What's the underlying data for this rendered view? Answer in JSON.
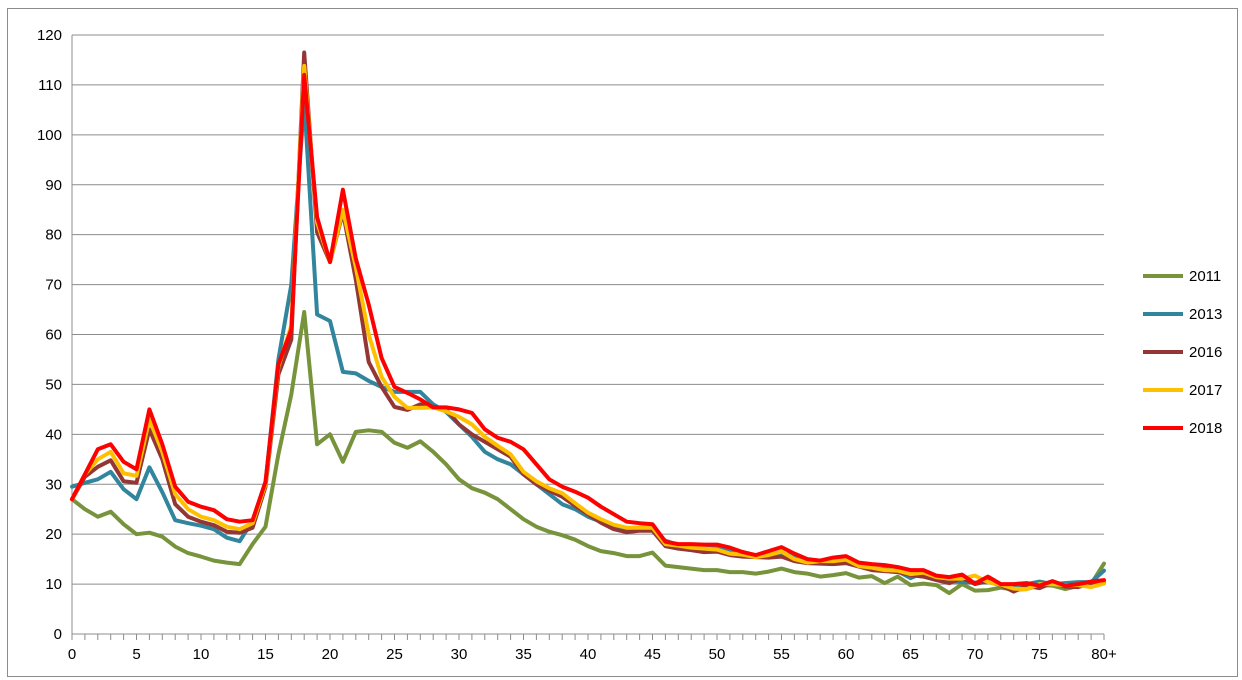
{
  "chart_data": {
    "type": "line",
    "title": "",
    "xlabel": "",
    "ylabel": "",
    "ylim": [
      0,
      120
    ],
    "y_ticks": [
      0,
      10,
      20,
      30,
      40,
      50,
      60,
      70,
      80,
      90,
      100,
      110,
      120
    ],
    "x_tick_labels": [
      "0",
      "5",
      "10",
      "15",
      "20",
      "25",
      "30",
      "35",
      "40",
      "45",
      "50",
      "55",
      "60",
      "65",
      "70",
      "75",
      "80+"
    ],
    "x": [
      "0",
      "1",
      "2",
      "3",
      "4",
      "5",
      "6",
      "7",
      "8",
      "9",
      "10",
      "11",
      "12",
      "13",
      "14",
      "15",
      "16",
      "17",
      "18",
      "19",
      "20",
      "21",
      "22",
      "23",
      "24",
      "25",
      "26",
      "27",
      "28",
      "29",
      "30",
      "31",
      "32",
      "33",
      "34",
      "35",
      "36",
      "37",
      "38",
      "39",
      "40",
      "41",
      "42",
      "43",
      "44",
      "45",
      "46",
      "47",
      "48",
      "49",
      "50",
      "51",
      "52",
      "53",
      "54",
      "55",
      "56",
      "57",
      "58",
      "59",
      "60",
      "61",
      "62",
      "63",
      "64",
      "65",
      "66",
      "67",
      "68",
      "69",
      "70",
      "71",
      "72",
      "73",
      "74",
      "75",
      "76",
      "77",
      "78",
      "79",
      "80+"
    ],
    "grid": "horizontal",
    "legend_position": "right",
    "series": [
      {
        "name": "2011",
        "color": "#77933c",
        "values": [
          27,
          25,
          23.5,
          24.5,
          22,
          20,
          20.3,
          19.5,
          17.5,
          16.2,
          15.5,
          14.7,
          14.3,
          14,
          18,
          21.5,
          36,
          48,
          64.5,
          38,
          40,
          34.5,
          40.5,
          40.8,
          40.5,
          38.3,
          37.3,
          38.6,
          36.5,
          34,
          31,
          29.2,
          28.3,
          27,
          25,
          23,
          21.5,
          20.5,
          19.8,
          18.9,
          17.6,
          16.6,
          16.2,
          15.6,
          15.6,
          16.3,
          13.7,
          13.4,
          13.1,
          12.8,
          12.8,
          12.4,
          12.4,
          12.1,
          12.5,
          13.1,
          12.4,
          12.1,
          11.5,
          11.8,
          12.2,
          11.3,
          11.6,
          10.2,
          11.5,
          9.8,
          10.1,
          9.8,
          8.2,
          10,
          8.7,
          8.8,
          9.3,
          8.9,
          9,
          9.8,
          9.7,
          9,
          9.6,
          10,
          14.1
        ]
      },
      {
        "name": "2013",
        "color": "#31859c",
        "values": [
          29.5,
          30.3,
          31,
          32.5,
          29,
          27,
          33.4,
          28.4,
          22.8,
          22.2,
          21.7,
          21,
          19.3,
          18.6,
          22.7,
          30.3,
          55,
          70,
          107,
          64,
          62.7,
          52.5,
          52.2,
          50.7,
          49.5,
          48.5,
          48.5,
          48.5,
          46,
          44.5,
          42,
          39.5,
          36.5,
          35,
          34,
          32,
          30,
          28,
          26,
          25,
          23.5,
          22.5,
          21.5,
          21,
          21,
          21,
          18.7,
          17.8,
          17.5,
          17.2,
          17.5,
          16.9,
          16.4,
          15.7,
          15.7,
          16.2,
          15.6,
          14.9,
          14.6,
          14.4,
          14.5,
          13.8,
          13.2,
          13,
          12.6,
          11.2,
          12.3,
          11.2,
          10.6,
          10.4,
          10.3,
          10.4,
          9.8,
          9.5,
          10,
          10.5,
          10,
          10.2,
          10.4,
          10.4,
          12.7
        ]
      },
      {
        "name": "2016",
        "color": "#943634",
        "values": [
          27,
          31.5,
          33.5,
          34.8,
          30.6,
          30.3,
          41,
          35,
          26,
          23.5,
          22.5,
          21.8,
          20.5,
          20.3,
          21.3,
          29.5,
          52,
          59,
          116.5,
          80.5,
          74.5,
          84.5,
          71,
          54.5,
          49.5,
          45.5,
          44.9,
          46,
          45.5,
          45,
          42,
          40,
          38.5,
          37,
          35.5,
          32,
          30,
          28.7,
          27.5,
          25.7,
          24,
          22.3,
          21,
          20.4,
          20.7,
          20.7,
          17.6,
          17.1,
          16.8,
          16.4,
          16.5,
          15.8,
          15.5,
          15.4,
          15.3,
          15.5,
          14.6,
          14.2,
          14.1,
          14,
          14.2,
          13.5,
          12.8,
          12.6,
          12.4,
          11.8,
          11.5,
          10.8,
          10.2,
          11.2,
          10,
          10.6,
          9.8,
          8.5,
          9.7,
          9.2,
          10.3,
          9.5,
          9.4,
          10.2,
          10.3
        ]
      },
      {
        "name": "2017",
        "color": "#ffc000",
        "values": [
          27,
          32,
          35,
          36.5,
          32.2,
          31.7,
          43,
          36.5,
          28,
          25,
          23.5,
          22.8,
          21.5,
          21,
          22.2,
          30,
          53.5,
          61.8,
          113.8,
          82.5,
          74.5,
          85,
          73.5,
          60,
          51.5,
          47.5,
          45.3,
          45.3,
          45.4,
          44.6,
          43.5,
          42,
          39.5,
          37.7,
          36,
          32.5,
          30.6,
          29.2,
          28.2,
          26.2,
          24.3,
          23,
          21.9,
          21.3,
          21.3,
          21.3,
          18,
          17.7,
          17.3,
          17.1,
          16.9,
          16.1,
          15.9,
          15.4,
          15.8,
          16.5,
          15,
          14.3,
          14.6,
          14.6,
          14.9,
          13.6,
          13.3,
          12.8,
          12.7,
          12,
          12.3,
          11.4,
          11.1,
          11.1,
          11.7,
          10.4,
          9.9,
          9.1,
          9,
          10,
          10,
          9.8,
          9.8,
          9.4,
          10.1
        ]
      },
      {
        "name": "2018",
        "color": "#ff0000",
        "values": [
          27,
          32,
          37,
          38,
          34.5,
          33,
          45,
          38,
          29.5,
          26.5,
          25.5,
          24.8,
          23,
          22.5,
          22.8,
          30.5,
          54,
          61,
          112,
          83.5,
          74.5,
          89,
          75.2,
          66,
          55.3,
          49.5,
          48.3,
          47,
          45.4,
          45.4,
          45,
          44.3,
          41,
          39.3,
          38.5,
          37,
          34,
          31,
          29.5,
          28.5,
          27.3,
          25.5,
          24,
          22.5,
          22.2,
          22,
          18.5,
          18,
          18,
          17.9,
          17.9,
          17.3,
          16.4,
          15.8,
          16.6,
          17.4,
          16.1,
          15,
          14.7,
          15.3,
          15.6,
          14.3,
          14,
          13.8,
          13.4,
          12.8,
          12.8,
          11.7,
          11.4,
          11.9,
          10.1,
          11.5,
          10,
          10,
          10.2,
          9.7,
          10.6,
          9.7,
          10,
          10.5,
          10.8
        ]
      }
    ]
  }
}
